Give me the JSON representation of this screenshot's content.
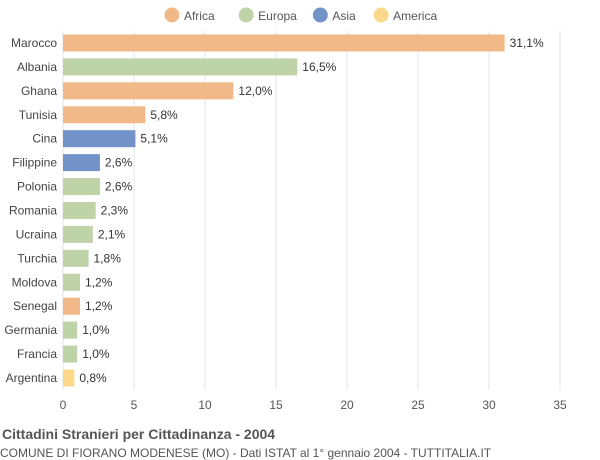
{
  "chart_data": {
    "type": "bar",
    "orientation": "horizontal",
    "title": "Cittadini Stranieri per Cittadinanza - 2004",
    "subtitle": "COMUNE DI FIORANO MODENESE (MO) - Dati ISTAT al 1° gennaio 2004 - TUTTITALIA.IT",
    "xlim": [
      0,
      35
    ],
    "xticks": [
      0,
      5,
      10,
      15,
      20,
      25,
      30,
      35
    ],
    "grid": true,
    "legend_position": "top-center",
    "legend": [
      {
        "name": "Africa",
        "color": "#f0b987"
      },
      {
        "name": "Europa",
        "color": "#bfd3a8"
      },
      {
        "name": "Asia",
        "color": "#7393c8"
      },
      {
        "name": "America",
        "color": "#fcd88a"
      }
    ],
    "categories": [
      "Marocco",
      "Albania",
      "Ghana",
      "Tunisia",
      "Cina",
      "Filippine",
      "Polonia",
      "Romania",
      "Ucraina",
      "Turchia",
      "Moldova",
      "Senegal",
      "Germania",
      "Francia",
      "Argentina"
    ],
    "values": [
      31.1,
      16.5,
      12.0,
      5.8,
      5.1,
      2.6,
      2.6,
      2.3,
      2.1,
      1.8,
      1.2,
      1.2,
      1.0,
      1.0,
      0.8
    ],
    "labels": [
      "31,1%",
      "16,5%",
      "12,0%",
      "5,8%",
      "5,1%",
      "2,6%",
      "2,6%",
      "2,3%",
      "2,1%",
      "1,8%",
      "1,2%",
      "1,2%",
      "1,0%",
      "1,0%",
      "0,8%"
    ],
    "groups": [
      "Africa",
      "Europa",
      "Africa",
      "Africa",
      "Asia",
      "Asia",
      "Europa",
      "Europa",
      "Europa",
      "Europa",
      "Europa",
      "Africa",
      "Europa",
      "Europa",
      "America"
    ]
  }
}
